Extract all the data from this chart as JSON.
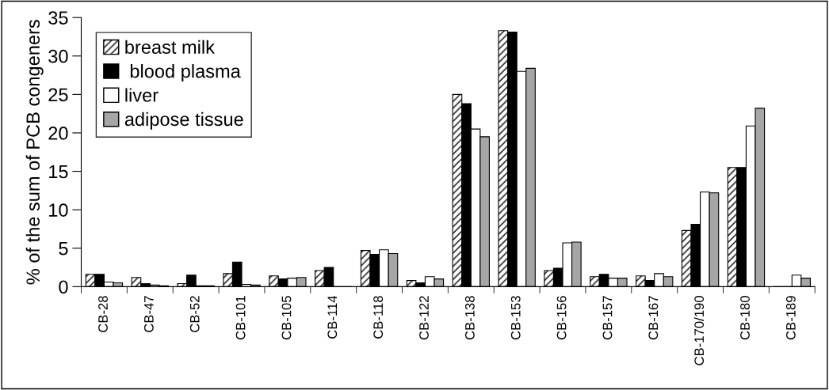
{
  "chart_data": {
    "type": "bar",
    "ylabel": "% of the sum of PCB congeners",
    "categories": [
      "CB-28",
      "CB-47",
      "CB-52",
      "CB-101",
      "CB-105",
      "CB-114",
      "CB-118",
      "CB-122",
      "CB-138",
      "CB-153",
      "CB-156",
      "CB-157",
      "CB-167",
      "CB-170/190",
      "CB-180",
      "CB-189"
    ],
    "series": [
      {
        "name": "breast milk",
        "color": "#000000",
        "values": [
          1.6,
          1.2,
          0.4,
          1.7,
          1.4,
          2.1,
          4.7,
          0.8,
          25.0,
          33.3,
          2.1,
          1.3,
          1.4,
          7.3,
          15.5,
          null
        ]
      },
      {
        "name": " blood plasma",
        "color": "#000000",
        "values": [
          1.6,
          0.4,
          1.5,
          3.2,
          1.0,
          2.5,
          4.2,
          0.5,
          23.8,
          33.1,
          2.4,
          1.6,
          0.8,
          8.1,
          15.5,
          null
        ]
      },
      {
        "name": "liver",
        "color": "#ffffff",
        "values": [
          0.6,
          0.2,
          0.1,
          0.3,
          1.1,
          null,
          4.8,
          1.3,
          20.5,
          28.0,
          5.7,
          1.1,
          1.7,
          12.3,
          20.9,
          1.5
        ]
      },
      {
        "name": "adipose tissue",
        "color": "#a6a6a6",
        "values": [
          0.5,
          0.1,
          0.1,
          0.2,
          1.2,
          null,
          4.3,
          1.0,
          19.5,
          28.4,
          5.8,
          1.1,
          1.3,
          12.2,
          23.2,
          1.1
        ]
      }
    ],
    "ylim": [
      0,
      35
    ],
    "yticks": [
      0,
      5,
      10,
      15,
      20,
      25,
      30,
      35
    ],
    "grid": false,
    "legend": "top left"
  }
}
